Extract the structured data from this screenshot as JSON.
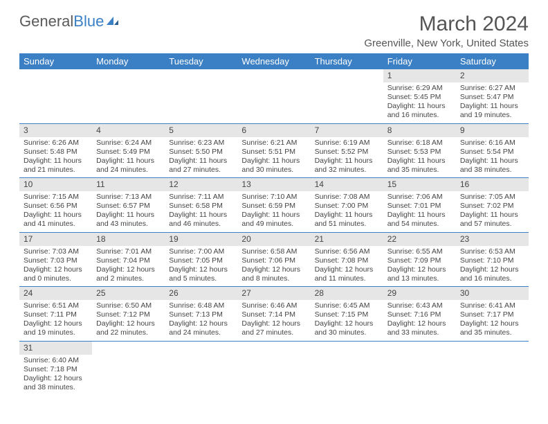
{
  "logo": {
    "text1": "General",
    "text2": "Blue"
  },
  "title": "March 2024",
  "location": "Greenville, New York, United States",
  "colors": {
    "header_bg": "#3b7fc4",
    "header_fg": "#ffffff",
    "daynum_bg": "#e7e6e6",
    "row_border": "#3b7fc4",
    "text": "#444444"
  },
  "weekdays": [
    "Sunday",
    "Monday",
    "Tuesday",
    "Wednesday",
    "Thursday",
    "Friday",
    "Saturday"
  ],
  "weeks": [
    [
      null,
      null,
      null,
      null,
      null,
      {
        "n": "1",
        "sr": "Sunrise: 6:29 AM",
        "ss": "Sunset: 5:45 PM",
        "dl": "Daylight: 11 hours and 16 minutes."
      },
      {
        "n": "2",
        "sr": "Sunrise: 6:27 AM",
        "ss": "Sunset: 5:47 PM",
        "dl": "Daylight: 11 hours and 19 minutes."
      }
    ],
    [
      {
        "n": "3",
        "sr": "Sunrise: 6:26 AM",
        "ss": "Sunset: 5:48 PM",
        "dl": "Daylight: 11 hours and 21 minutes."
      },
      {
        "n": "4",
        "sr": "Sunrise: 6:24 AM",
        "ss": "Sunset: 5:49 PM",
        "dl": "Daylight: 11 hours and 24 minutes."
      },
      {
        "n": "5",
        "sr": "Sunrise: 6:23 AM",
        "ss": "Sunset: 5:50 PM",
        "dl": "Daylight: 11 hours and 27 minutes."
      },
      {
        "n": "6",
        "sr": "Sunrise: 6:21 AM",
        "ss": "Sunset: 5:51 PM",
        "dl": "Daylight: 11 hours and 30 minutes."
      },
      {
        "n": "7",
        "sr": "Sunrise: 6:19 AM",
        "ss": "Sunset: 5:52 PM",
        "dl": "Daylight: 11 hours and 32 minutes."
      },
      {
        "n": "8",
        "sr": "Sunrise: 6:18 AM",
        "ss": "Sunset: 5:53 PM",
        "dl": "Daylight: 11 hours and 35 minutes."
      },
      {
        "n": "9",
        "sr": "Sunrise: 6:16 AM",
        "ss": "Sunset: 5:54 PM",
        "dl": "Daylight: 11 hours and 38 minutes."
      }
    ],
    [
      {
        "n": "10",
        "sr": "Sunrise: 7:15 AM",
        "ss": "Sunset: 6:56 PM",
        "dl": "Daylight: 11 hours and 41 minutes."
      },
      {
        "n": "11",
        "sr": "Sunrise: 7:13 AM",
        "ss": "Sunset: 6:57 PM",
        "dl": "Daylight: 11 hours and 43 minutes."
      },
      {
        "n": "12",
        "sr": "Sunrise: 7:11 AM",
        "ss": "Sunset: 6:58 PM",
        "dl": "Daylight: 11 hours and 46 minutes."
      },
      {
        "n": "13",
        "sr": "Sunrise: 7:10 AM",
        "ss": "Sunset: 6:59 PM",
        "dl": "Daylight: 11 hours and 49 minutes."
      },
      {
        "n": "14",
        "sr": "Sunrise: 7:08 AM",
        "ss": "Sunset: 7:00 PM",
        "dl": "Daylight: 11 hours and 51 minutes."
      },
      {
        "n": "15",
        "sr": "Sunrise: 7:06 AM",
        "ss": "Sunset: 7:01 PM",
        "dl": "Daylight: 11 hours and 54 minutes."
      },
      {
        "n": "16",
        "sr": "Sunrise: 7:05 AM",
        "ss": "Sunset: 7:02 PM",
        "dl": "Daylight: 11 hours and 57 minutes."
      }
    ],
    [
      {
        "n": "17",
        "sr": "Sunrise: 7:03 AM",
        "ss": "Sunset: 7:03 PM",
        "dl": "Daylight: 12 hours and 0 minutes."
      },
      {
        "n": "18",
        "sr": "Sunrise: 7:01 AM",
        "ss": "Sunset: 7:04 PM",
        "dl": "Daylight: 12 hours and 2 minutes."
      },
      {
        "n": "19",
        "sr": "Sunrise: 7:00 AM",
        "ss": "Sunset: 7:05 PM",
        "dl": "Daylight: 12 hours and 5 minutes."
      },
      {
        "n": "20",
        "sr": "Sunrise: 6:58 AM",
        "ss": "Sunset: 7:06 PM",
        "dl": "Daylight: 12 hours and 8 minutes."
      },
      {
        "n": "21",
        "sr": "Sunrise: 6:56 AM",
        "ss": "Sunset: 7:08 PM",
        "dl": "Daylight: 12 hours and 11 minutes."
      },
      {
        "n": "22",
        "sr": "Sunrise: 6:55 AM",
        "ss": "Sunset: 7:09 PM",
        "dl": "Daylight: 12 hours and 13 minutes."
      },
      {
        "n": "23",
        "sr": "Sunrise: 6:53 AM",
        "ss": "Sunset: 7:10 PM",
        "dl": "Daylight: 12 hours and 16 minutes."
      }
    ],
    [
      {
        "n": "24",
        "sr": "Sunrise: 6:51 AM",
        "ss": "Sunset: 7:11 PM",
        "dl": "Daylight: 12 hours and 19 minutes."
      },
      {
        "n": "25",
        "sr": "Sunrise: 6:50 AM",
        "ss": "Sunset: 7:12 PM",
        "dl": "Daylight: 12 hours and 22 minutes."
      },
      {
        "n": "26",
        "sr": "Sunrise: 6:48 AM",
        "ss": "Sunset: 7:13 PM",
        "dl": "Daylight: 12 hours and 24 minutes."
      },
      {
        "n": "27",
        "sr": "Sunrise: 6:46 AM",
        "ss": "Sunset: 7:14 PM",
        "dl": "Daylight: 12 hours and 27 minutes."
      },
      {
        "n": "28",
        "sr": "Sunrise: 6:45 AM",
        "ss": "Sunset: 7:15 PM",
        "dl": "Daylight: 12 hours and 30 minutes."
      },
      {
        "n": "29",
        "sr": "Sunrise: 6:43 AM",
        "ss": "Sunset: 7:16 PM",
        "dl": "Daylight: 12 hours and 33 minutes."
      },
      {
        "n": "30",
        "sr": "Sunrise: 6:41 AM",
        "ss": "Sunset: 7:17 PM",
        "dl": "Daylight: 12 hours and 35 minutes."
      }
    ],
    [
      {
        "n": "31",
        "sr": "Sunrise: 6:40 AM",
        "ss": "Sunset: 7:18 PM",
        "dl": "Daylight: 12 hours and 38 minutes."
      },
      null,
      null,
      null,
      null,
      null,
      null
    ]
  ]
}
